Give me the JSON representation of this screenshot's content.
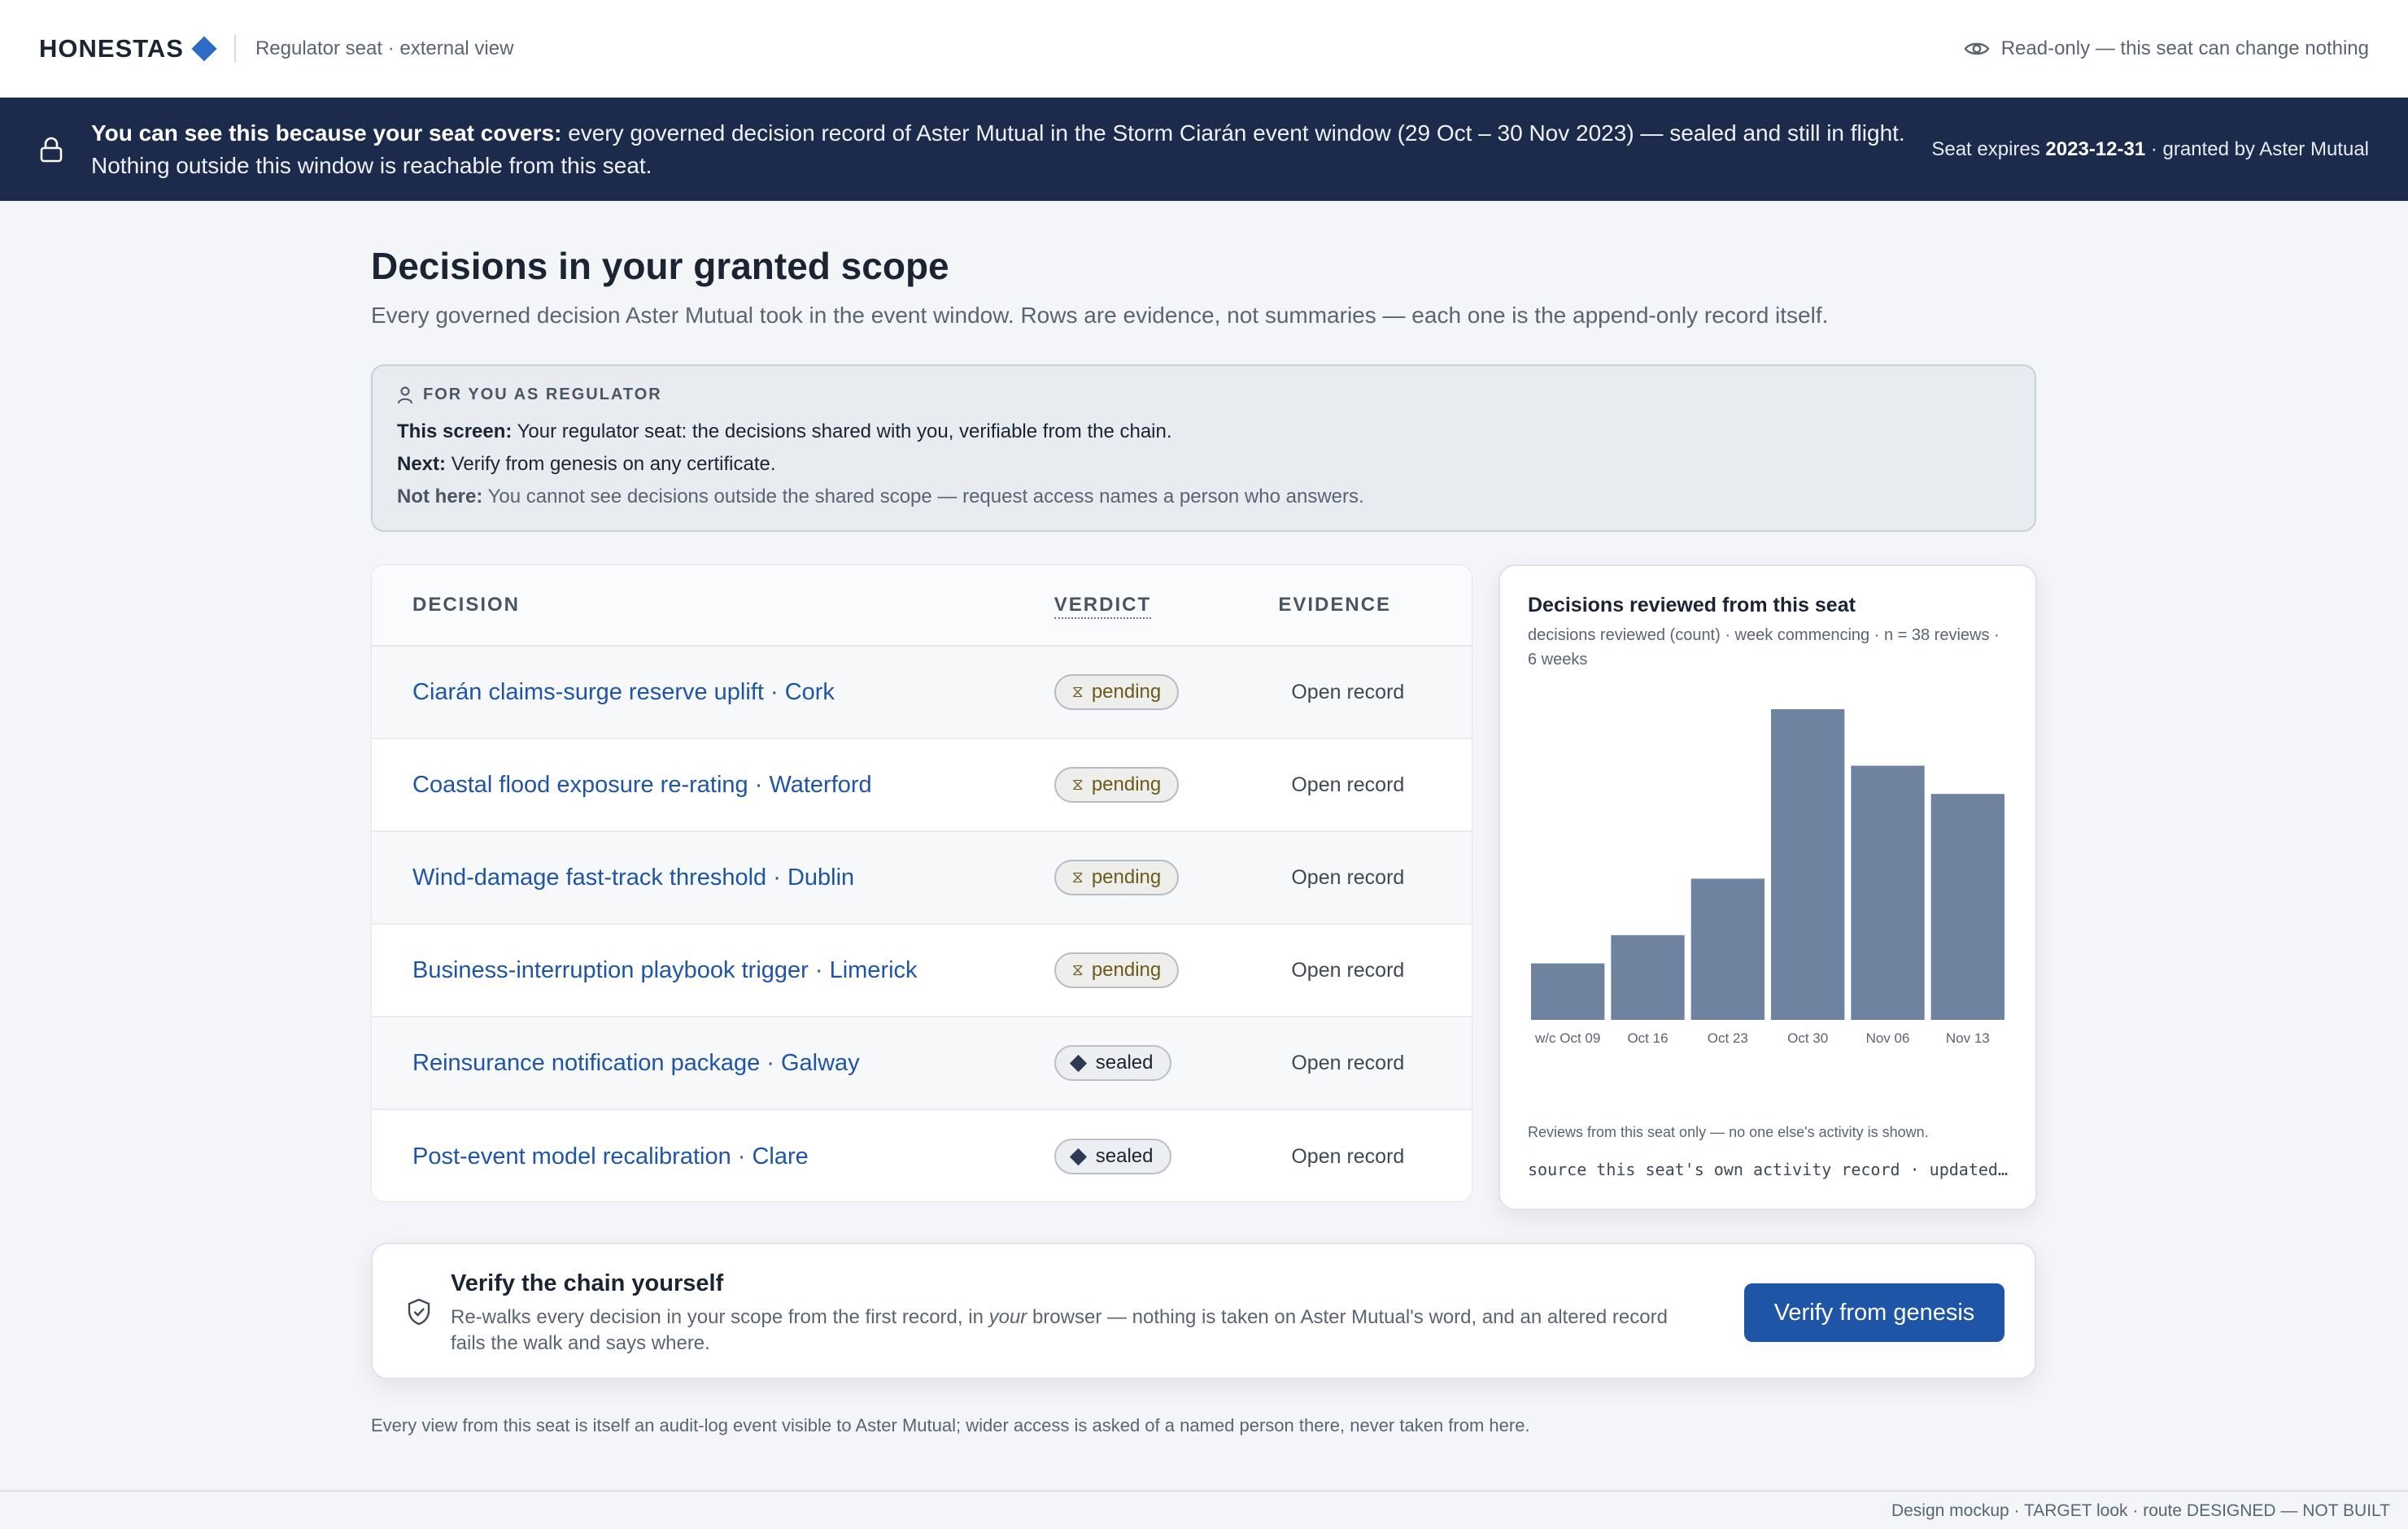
{
  "header": {
    "brand": "HONESTAS",
    "seat_label": "Regulator seat · external view",
    "readonly_label": "Read-only — this seat can change nothing",
    "icons": {
      "brand_mark": "diamond-icon",
      "readonly": "eye-icon"
    }
  },
  "scope_banner": {
    "lead": "You can see this because your seat covers:",
    "text": "every governed decision record of Aster Mutual in the Storm Ciarán event window (29 Oct – 30 Nov 2023) — sealed and still in flight. Nothing outside this window is reachable from this seat.",
    "expiry_prefix": "Seat expires",
    "expiry_date": "2023-12-31",
    "expiry_suffix": "· granted by Aster Mutual",
    "icon": "lock-icon"
  },
  "page": {
    "title": "Decisions in your granted scope",
    "subtitle": "Every governed decision Aster Mutual took in the event window. Rows are evidence, not summaries — each one is the append-only record itself."
  },
  "role_card": {
    "heading": "FOR YOU AS REGULATOR",
    "this_label": "This screen:",
    "this_text": "Your regulator seat: the decisions shared with you, verifiable from the chain.",
    "next_label": "Next:",
    "next_text": "Verify from genesis on any certificate.",
    "not_label": "Not here:",
    "not_text": "You cannot see decisions outside the shared scope — request access names a person who answers.",
    "icon": "person-icon"
  },
  "table": {
    "headers": {
      "decision": "DECISION",
      "verdict": "VERDICT",
      "evidence": "EVIDENCE"
    },
    "rows": [
      {
        "decision": "Ciarán claims-surge reserve uplift · Cork",
        "verdict": "pending",
        "verdict_glyph": "⧖",
        "evidence": "Open record"
      },
      {
        "decision": "Coastal flood exposure re-rating · Waterford",
        "verdict": "pending",
        "verdict_glyph": "⧖",
        "evidence": "Open record"
      },
      {
        "decision": "Wind-damage fast-track threshold · Dublin",
        "verdict": "pending",
        "verdict_glyph": "⧖",
        "evidence": "Open record"
      },
      {
        "decision": "Business-interruption playbook trigger · Limerick",
        "verdict": "pending",
        "verdict_glyph": "⧖",
        "evidence": "Open record"
      },
      {
        "decision": "Reinsurance notification package · Galway",
        "verdict": "sealed",
        "verdict_glyph": "",
        "evidence": "Open record"
      },
      {
        "decision": "Post-event model recalibration · Clare",
        "verdict": "sealed",
        "verdict_glyph": "",
        "evidence": "Open record"
      }
    ]
  },
  "chart_card": {
    "title": "Decisions reviewed from this seat",
    "subtitle": "decisions reviewed (count) · week commencing · n = 38 reviews · 6 weeks",
    "note": "Reviews from this seat only — no one else's activity is shown.",
    "source": "source this seat's own activity record · updated…"
  },
  "chart_data": {
    "type": "bar",
    "categories": [
      "w/c Oct 09",
      "Oct 16",
      "Oct 23",
      "Oct 30",
      "Nov 06",
      "Nov 13"
    ],
    "values": [
      2,
      3,
      5,
      11,
      9,
      8
    ],
    "ylim": [
      0,
      11
    ],
    "grid": false,
    "bar_color": "#6f83a0"
  },
  "verify": {
    "title": "Verify the chain yourself",
    "desc_before": "Re-walks every decision in your scope from the first record, in ",
    "desc_em": "your",
    "desc_after": " browser — nothing is taken on Aster Mutual's word, and an altered record fails the walk and says where.",
    "button": "Verify from genesis",
    "icon": "shield-check-icon"
  },
  "audit_note": "Every view from this seat is itself an audit-log event visible to Aster Mutual; wider access is asked of a named person there, never taken from here.",
  "footer": "Design mockup · TARGET look · route DESIGNED — NOT BUILT",
  "colors": {
    "navy": "#1c2b4b",
    "link": "#1f55a6",
    "brand_accent": "#2d6bc4",
    "bar": "#6f83a0"
  }
}
